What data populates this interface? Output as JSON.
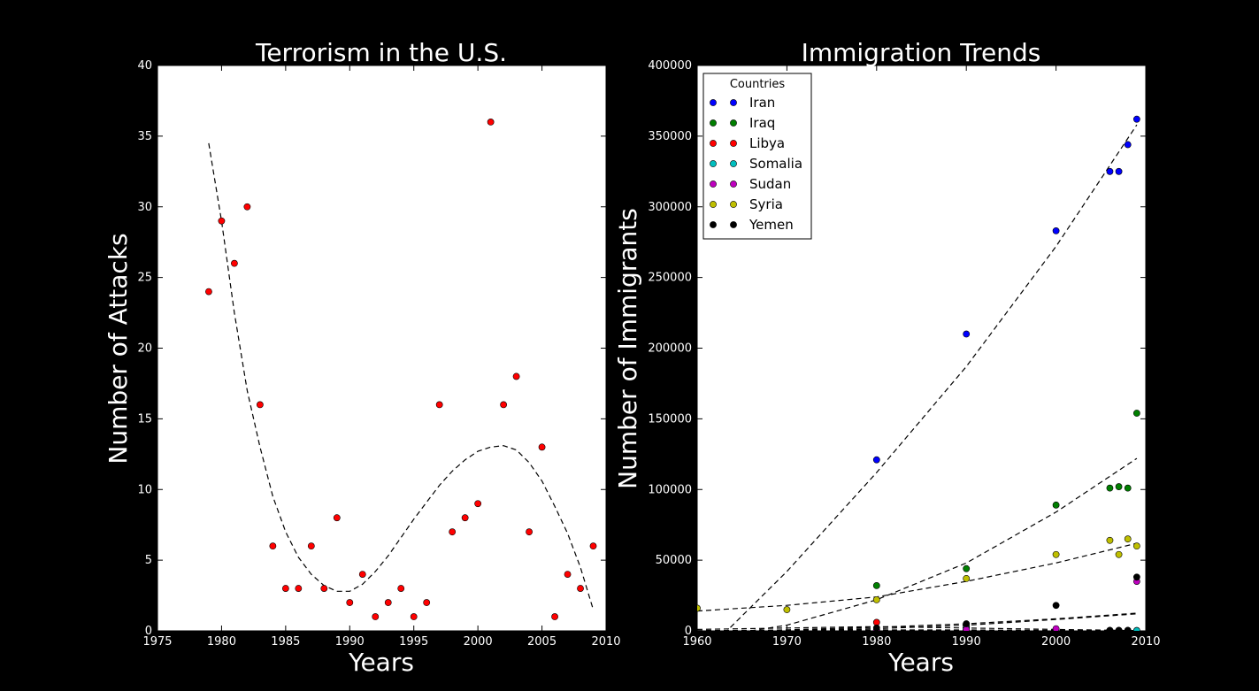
{
  "chart_data": [
    {
      "type": "scatter",
      "title": "Terrorism in the U.S.",
      "xlabel": "Years",
      "ylabel": "Number of Attacks",
      "xlim": [
        1975,
        2010
      ],
      "ylim": [
        0,
        40
      ],
      "xticks": [
        "1975",
        "1980",
        "1985",
        "1990",
        "1995",
        "2000",
        "2005",
        "2010"
      ],
      "yticks": [
        "0",
        "5",
        "10",
        "15",
        "20",
        "25",
        "30",
        "35",
        "40"
      ],
      "grid": false,
      "series": [
        {
          "color": "#ff0000",
          "points": [
            [
              1979,
              24
            ],
            [
              1980,
              29
            ],
            [
              1981,
              26
            ],
            [
              1982,
              30
            ],
            [
              1983,
              16
            ],
            [
              1984,
              6
            ],
            [
              1985,
              3
            ],
            [
              1986,
              3
            ],
            [
              1987,
              6
            ],
            [
              1988,
              3
            ],
            [
              1989,
              8
            ],
            [
              1990,
              2
            ],
            [
              1991,
              4
            ],
            [
              1992,
              1
            ],
            [
              1993,
              2
            ],
            [
              1994,
              3
            ],
            [
              1995,
              1
            ],
            [
              1996,
              2
            ],
            [
              1997,
              16
            ],
            [
              1998,
              7
            ],
            [
              1999,
              8
            ],
            [
              2000,
              9
            ],
            [
              2001,
              36
            ],
            [
              2002,
              16
            ],
            [
              2003,
              18
            ],
            [
              2004,
              7
            ],
            [
              2005,
              13
            ],
            [
              2006,
              1
            ],
            [
              2007,
              4
            ],
            [
              2008,
              3
            ],
            [
              2009,
              6
            ]
          ]
        }
      ],
      "trendline": {
        "style": "dashed",
        "color": "#000000",
        "points": [
          [
            1979,
            34.5
          ],
          [
            1980,
            29
          ],
          [
            1981,
            22.5
          ],
          [
            1982,
            17
          ],
          [
            1983,
            13
          ],
          [
            1984,
            9.5
          ],
          [
            1985,
            7
          ],
          [
            1986,
            5.2
          ],
          [
            1987,
            4
          ],
          [
            1988,
            3.2
          ],
          [
            1989,
            2.8
          ],
          [
            1990,
            2.8
          ],
          [
            1991,
            3.3
          ],
          [
            1992,
            4.2
          ],
          [
            1993,
            5.3
          ],
          [
            1994,
            6.6
          ],
          [
            1995,
            7.9
          ],
          [
            1996,
            9.1
          ],
          [
            1997,
            10.3
          ],
          [
            1998,
            11.3
          ],
          [
            1999,
            12.1
          ],
          [
            2000,
            12.7
          ],
          [
            2001,
            13
          ],
          [
            2002,
            13.1
          ],
          [
            2003,
            12.8
          ],
          [
            2004,
            11.9
          ],
          [
            2005,
            10.6
          ],
          [
            2006,
            8.8
          ],
          [
            2007,
            6.9
          ],
          [
            2008,
            4.5
          ],
          [
            2009,
            1.5
          ]
        ]
      }
    },
    {
      "type": "scatter",
      "title": "Immigration Trends",
      "xlabel": "Years",
      "ylabel": "Number of Immigrants",
      "xlim": [
        1960,
        2010
      ],
      "ylim": [
        0,
        400000
      ],
      "xticks": [
        "1960",
        "1970",
        "1980",
        "1990",
        "2000",
        "2010"
      ],
      "yticks": [
        "0",
        "50000",
        "100000",
        "150000",
        "200000",
        "250000",
        "300000",
        "350000",
        "400000"
      ],
      "grid": false,
      "legend": {
        "title": "Countries",
        "position": "top-left"
      },
      "series": [
        {
          "name": "Iran",
          "color": "#0000ff",
          "points": [
            [
              1980,
              121000
            ],
            [
              1990,
              210000
            ],
            [
              2000,
              283000
            ],
            [
              2006,
              325000
            ],
            [
              2007,
              325000
            ],
            [
              2008,
              344000
            ],
            [
              2009,
              362000
            ]
          ],
          "fit": [
            [
              1963,
              -2000
            ],
            [
              1970,
              42000
            ],
            [
              1980,
              112000
            ],
            [
              1990,
              187000
            ],
            [
              2000,
              272000
            ],
            [
              2009,
              358000
            ]
          ]
        },
        {
          "name": "Iraq",
          "color": "#007f00",
          "points": [
            [
              1980,
              32000
            ],
            [
              1990,
              44000
            ],
            [
              2000,
              89000
            ],
            [
              2006,
              101000
            ],
            [
              2007,
              102000
            ],
            [
              2008,
              101000
            ],
            [
              2009,
              154000
            ]
          ],
          "fit": [
            [
              1964,
              -2000
            ],
            [
              1970,
              4000
            ],
            [
              1980,
              22000
            ],
            [
              1990,
              48000
            ],
            [
              2000,
              84000
            ],
            [
              2009,
              122000
            ]
          ]
        },
        {
          "name": "Libya",
          "color": "#ff0000",
          "points": [
            [
              1980,
              6000
            ],
            [
              1990,
              3000
            ],
            [
              2000,
              1000
            ],
            [
              2006,
              200
            ],
            [
              2007,
              200
            ],
            [
              2008,
              200
            ],
            [
              2009,
              200
            ]
          ],
          "fit": [
            [
              1960,
              1000
            ],
            [
              1980,
              3000
            ],
            [
              1990,
              2000
            ],
            [
              2000,
              1000
            ],
            [
              2009,
              200
            ]
          ]
        },
        {
          "name": "Somalia",
          "color": "#00bfbf",
          "points": [
            [
              1980,
              500
            ],
            [
              1990,
              2000
            ],
            [
              2000,
              300
            ],
            [
              2006,
              200
            ],
            [
              2007,
              200
            ],
            [
              2008,
              200
            ],
            [
              2009,
              200
            ]
          ],
          "fit": [
            [
              1960,
              200
            ],
            [
              1980,
              700
            ],
            [
              1990,
              600
            ],
            [
              2000,
              300
            ],
            [
              2009,
              100
            ]
          ]
        },
        {
          "name": "Sudan",
          "color": "#bf00bf",
          "points": [
            [
              1980,
              300
            ],
            [
              1990,
              1000
            ],
            [
              2000,
              1500
            ],
            [
              2006,
              300
            ],
            [
              2007,
              300
            ],
            [
              2008,
              300
            ],
            [
              2009,
              35000
            ]
          ],
          "fit": [
            [
              1960,
              -500
            ],
            [
              1980,
              1500
            ],
            [
              1990,
              4000
            ],
            [
              2000,
              8000
            ],
            [
              2009,
              12000
            ]
          ]
        },
        {
          "name": "Syria",
          "color": "#bfbf00",
          "points": [
            [
              1960,
              16000
            ],
            [
              1970,
              15000
            ],
            [
              1980,
              22000
            ],
            [
              1990,
              37000
            ],
            [
              2000,
              54000
            ],
            [
              2006,
              64000
            ],
            [
              2007,
              54000
            ],
            [
              2008,
              65000
            ],
            [
              2009,
              60000
            ]
          ],
          "fit": [
            [
              1960,
              14000
            ],
            [
              1970,
              18000
            ],
            [
              1980,
              24000
            ],
            [
              1990,
              35000
            ],
            [
              2000,
              48000
            ],
            [
              2009,
              62000
            ]
          ]
        },
        {
          "name": "Yemen",
          "color": "#000000",
          "points": [
            [
              1980,
              2000
            ],
            [
              1990,
              5000
            ],
            [
              2000,
              18000
            ],
            [
              2006,
              300
            ],
            [
              2007,
              300
            ],
            [
              2008,
              300
            ],
            [
              2009,
              38000
            ]
          ],
          "fit": [
            [
              1960,
              -1000
            ],
            [
              1980,
              2500
            ],
            [
              1990,
              5000
            ],
            [
              2000,
              8500
            ],
            [
              2009,
              12500
            ]
          ]
        }
      ]
    }
  ]
}
